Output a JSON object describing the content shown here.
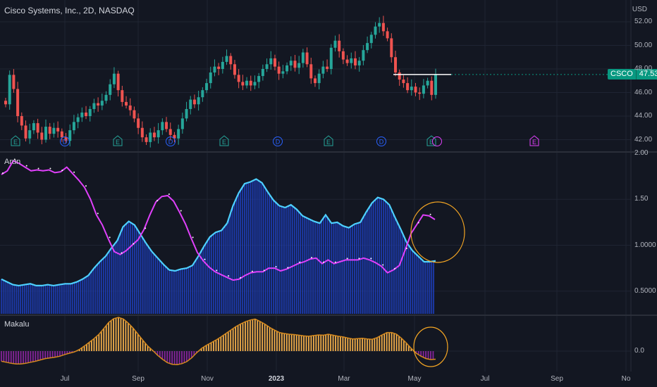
{
  "header": {
    "title": "Cisco Systems, Inc., 2D, NASDAQ",
    "currency": "USD"
  },
  "price_badge": {
    "symbol": "CSCO",
    "value": "47.53"
  },
  "panels": {
    "oscillator_label": "Arun",
    "lower_label": "Makalu"
  },
  "colors": {
    "background": "#131722",
    "up": "#26a69a",
    "down": "#ef5350",
    "histogram_blue": "#1e3fbf",
    "cyan_line": "#4dd0ff",
    "magenta_line": "#e040fb",
    "makalu_positive": "#ffb74d",
    "makalu_negative": "#9c27b0",
    "circle": "#f5a623",
    "dividend_icon": "#2962ff",
    "earnings_icon": "#26a69a",
    "future_earnings_icon": "#e040fb"
  },
  "chart_data": [
    {
      "type": "candlestick",
      "title": "Cisco Systems, Inc., 2D, NASDAQ",
      "ylabel": "USD",
      "yticks": [
        "52.00",
        "50.00",
        "48.00",
        "46.00",
        "44.00",
        "42.00"
      ],
      "ylim": [
        41.6,
        53.0
      ],
      "x_tick_labels": [
        "Jul",
        "Sep",
        "Nov",
        "2023",
        "Mar",
        "May",
        "Jul",
        "Sep",
        "No"
      ],
      "last_price": 47.53,
      "horizontal_level": 47.53,
      "event_markers": [
        "E",
        "D",
        "E",
        "D",
        "E",
        "D",
        "E",
        "D",
        "E",
        "E"
      ],
      "closes": [
        45.0,
        47.5,
        46.3,
        44.0,
        43.2,
        42.1,
        42.8,
        43.4,
        42.6,
        42.0,
        43.1,
        42.5,
        43.0,
        42.7,
        42.2,
        41.9,
        42.8,
        43.5,
        43.9,
        44.3,
        44.0,
        44.6,
        45.1,
        44.9,
        45.3,
        45.8,
        46.7,
        47.6,
        46.2,
        45.2,
        44.9,
        44.5,
        43.8,
        43.0,
        42.2,
        41.8,
        42.6,
        42.2,
        42.8,
        43.5,
        42.9,
        42.4,
        42.1,
        42.9,
        43.8,
        44.6,
        45.4,
        45.0,
        45.6,
        46.2,
        46.8,
        47.7,
        48.2,
        48.0,
        48.6,
        49.1,
        48.4,
        47.5,
        46.9,
        46.6,
        47.0,
        46.6,
        46.9,
        47.4,
        48.0,
        48.4,
        48.9,
        48.2,
        47.6,
        47.8,
        48.3,
        48.7,
        48.1,
        48.5,
        49.4,
        48.4,
        47.2,
        46.8,
        47.6,
        48.2,
        48.0,
        49.8,
        50.4,
        49.5,
        48.8,
        48.5,
        48.9,
        48.3,
        48.7,
        49.6,
        50.2,
        50.9,
        51.6,
        51.9,
        51.2,
        50.6,
        49.0,
        47.7,
        47.1,
        46.8,
        46.2,
        46.5,
        46.0,
        45.9,
        46.6,
        47.0,
        45.8,
        47.53
      ]
    },
    {
      "type": "line+bar",
      "name": "Arun",
      "yticks": [
        "2.00",
        "1.50",
        "1.0000",
        "0.5000"
      ],
      "ylim": [
        0.2,
        2.0
      ],
      "histogram_and_cyan": [
        0.63,
        0.6,
        0.57,
        0.56,
        0.57,
        0.58,
        0.56,
        0.56,
        0.57,
        0.56,
        0.57,
        0.58,
        0.58,
        0.6,
        0.63,
        0.67,
        0.75,
        0.82,
        0.88,
        0.97,
        1.05,
        1.2,
        1.26,
        1.22,
        1.12,
        1.02,
        0.93,
        0.86,
        0.79,
        0.73,
        0.72,
        0.74,
        0.75,
        0.78,
        0.88,
        0.99,
        1.09,
        1.14,
        1.16,
        1.24,
        1.43,
        1.57,
        1.67,
        1.69,
        1.72,
        1.68,
        1.58,
        1.49,
        1.43,
        1.41,
        1.44,
        1.39,
        1.32,
        1.29,
        1.26,
        1.24,
        1.33,
        1.24,
        1.25,
        1.21,
        1.19,
        1.23,
        1.25,
        1.36,
        1.46,
        1.52,
        1.5,
        1.44,
        1.3,
        1.17,
        1.03,
        0.94,
        0.88,
        0.82,
        0.82,
        0.83
      ],
      "magenta": [
        1.77,
        1.81,
        1.92,
        1.89,
        1.85,
        1.81,
        1.82,
        1.81,
        1.82,
        1.79,
        1.8,
        1.85,
        1.78,
        1.71,
        1.63,
        1.5,
        1.33,
        1.22,
        1.07,
        0.93,
        0.9,
        0.94,
        1.0,
        1.06,
        1.17,
        1.33,
        1.47,
        1.53,
        1.54,
        1.48,
        1.36,
        1.23,
        1.07,
        0.92,
        0.83,
        0.76,
        0.71,
        0.68,
        0.65,
        0.62,
        0.63,
        0.67,
        0.7,
        0.71,
        0.71,
        0.75,
        0.75,
        0.72,
        0.74,
        0.77,
        0.8,
        0.82,
        0.85,
        0.86,
        0.8,
        0.84,
        0.8,
        0.82,
        0.84,
        0.84,
        0.84,
        0.86,
        0.84,
        0.81,
        0.77,
        0.7,
        0.73,
        0.78,
        0.95,
        1.13,
        1.23,
        1.33,
        1.32,
        1.28
      ]
    },
    {
      "type": "bar",
      "name": "Makalu",
      "yticks": [
        "0.0"
      ],
      "values": [
        -0.3,
        -0.33,
        -0.36,
        -0.38,
        -0.38,
        -0.36,
        -0.33,
        -0.3,
        -0.26,
        -0.22,
        -0.2,
        -0.18,
        -0.15,
        -0.1,
        -0.06,
        -0.02,
        0.05,
        0.15,
        0.26,
        0.37,
        0.5,
        0.67,
        0.85,
        0.96,
        1.0,
        0.95,
        0.83,
        0.68,
        0.5,
        0.32,
        0.15,
        0.02,
        -0.12,
        -0.24,
        -0.34,
        -0.39,
        -0.4,
        -0.37,
        -0.31,
        -0.2,
        -0.05,
        0.08,
        0.17,
        0.25,
        0.33,
        0.42,
        0.52,
        0.62,
        0.72,
        0.8,
        0.87,
        0.92,
        0.95,
        0.88,
        0.8,
        0.7,
        0.62,
        0.55,
        0.52,
        0.5,
        0.49,
        0.47,
        0.45,
        0.44,
        0.46,
        0.48,
        0.47,
        0.5,
        0.47,
        0.44,
        0.42,
        0.39,
        0.36,
        0.37,
        0.38,
        0.36,
        0.35,
        0.4,
        0.48,
        0.55,
        0.55,
        0.5,
        0.38,
        0.24,
        0.08,
        -0.06,
        -0.15,
        -0.22,
        -0.25,
        -0.24
      ]
    }
  ]
}
